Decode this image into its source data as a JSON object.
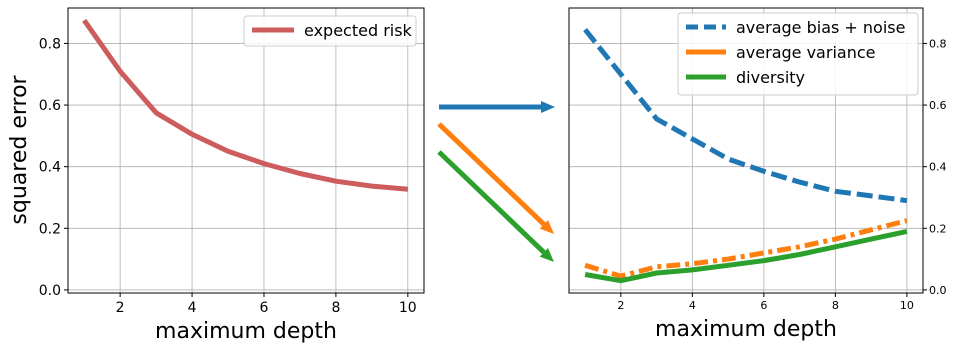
{
  "chart_data": [
    {
      "type": "line",
      "xlabel": "maximum depth",
      "ylabel": "squared error",
      "x": [
        1,
        2,
        3,
        4,
        5,
        6,
        7,
        8,
        9,
        10
      ],
      "xticks": [
        "2",
        "4",
        "6",
        "8",
        "10"
      ],
      "yticks": [
        "0.0",
        "0.2",
        "0.4",
        "0.6",
        "0.8"
      ],
      "xlim": [
        0.55,
        10.45
      ],
      "ylim": [
        -0.01,
        0.915
      ],
      "grid": true,
      "legend_position": "top-right",
      "series": [
        {
          "name": "expected risk",
          "color": "#cd5c5c",
          "style": "solid",
          "values": [
            0.875,
            0.71,
            0.575,
            0.505,
            0.45,
            0.41,
            0.378,
            0.353,
            0.337,
            0.327
          ]
        }
      ]
    },
    {
      "type": "line",
      "xlabel": "maximum depth",
      "ylabel": "",
      "x": [
        1,
        2,
        3,
        4,
        5,
        6,
        7,
        8,
        9,
        10
      ],
      "xticks": [
        "2",
        "4",
        "6",
        "8",
        "10"
      ],
      "yticks": [
        "0.0",
        "0.2",
        "0.4",
        "0.6",
        "0.8"
      ],
      "xlim": [
        0.55,
        10.45
      ],
      "ylim": [
        -0.01,
        0.915
      ],
      "grid": true,
      "y_axis_side": "right",
      "legend_position": "top-right",
      "series": [
        {
          "name": "average bias + noise",
          "color": "#1f77b4",
          "style": "dashed",
          "values": [
            0.845,
            0.7,
            0.555,
            0.49,
            0.425,
            0.385,
            0.35,
            0.32,
            0.305,
            0.29
          ]
        },
        {
          "name": "average variance",
          "color": "#ff7f0e",
          "style": "dashdot",
          "values": [
            0.08,
            0.045,
            0.075,
            0.085,
            0.1,
            0.12,
            0.14,
            0.165,
            0.195,
            0.225
          ]
        },
        {
          "name": "diversity",
          "color": "#2ca02c",
          "style": "solid",
          "values": [
            0.05,
            0.03,
            0.055,
            0.065,
            0.08,
            0.095,
            0.115,
            0.14,
            0.165,
            0.19
          ]
        }
      ]
    }
  ],
  "arrows": [
    {
      "name": "arrow-blue",
      "color": "#1f77b4"
    },
    {
      "name": "arrow-orange",
      "color": "#ff7f0e"
    },
    {
      "name": "arrow-green",
      "color": "#2ca02c"
    }
  ]
}
